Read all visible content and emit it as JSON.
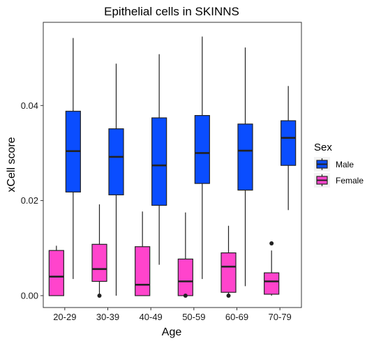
{
  "chart_data": {
    "type": "boxplot",
    "title": "Epithelial cells in SKINNS",
    "xlabel": "Age",
    "ylabel": "xCell score",
    "categories": [
      "20-29",
      "30-39",
      "40-49",
      "50-59",
      "60-69",
      "70-79"
    ],
    "ylim": [
      -0.0025,
      0.0575
    ],
    "yticks": [
      0.0,
      0.02,
      0.04
    ],
    "ytick_labels": [
      "0.00",
      "0.02",
      "0.04"
    ],
    "grid": false,
    "legend": {
      "title": "Sex",
      "placement": "right"
    },
    "series": [
      {
        "name": "Female",
        "color": "#ff44cc",
        "boxes": [
          {
            "min": 0.0,
            "q1": 0.0,
            "median": 0.004,
            "q3": 0.0095,
            "max": 0.0105,
            "outliers": []
          },
          {
            "min": 0.0,
            "q1": 0.003,
            "median": 0.0056,
            "q3": 0.0108,
            "max": 0.0192,
            "outliers": [
              0.0
            ]
          },
          {
            "min": 0.0,
            "q1": 0.0,
            "median": 0.0023,
            "q3": 0.0103,
            "max": 0.0177,
            "outliers": []
          },
          {
            "min": 0.0,
            "q1": 0.0,
            "median": 0.003,
            "q3": 0.0077,
            "max": 0.0175,
            "outliers": [
              0.0
            ]
          },
          {
            "min": 0.0,
            "q1": 0.0007,
            "median": 0.0061,
            "q3": 0.009,
            "max": 0.0147,
            "outliers": [
              0.0
            ]
          },
          {
            "min": 0.0,
            "q1": 0.0003,
            "median": 0.003,
            "q3": 0.0048,
            "max": 0.0095,
            "outliers": [
              0.011
            ]
          }
        ]
      },
      {
        "name": "Male",
        "color": "#0a4dff",
        "boxes": [
          {
            "min": 0.0035,
            "q1": 0.0218,
            "median": 0.0304,
            "q3": 0.0388,
            "max": 0.0542,
            "outliers": []
          },
          {
            "min": 0.0,
            "q1": 0.0212,
            "median": 0.0292,
            "q3": 0.0351,
            "max": 0.0488,
            "outliers": []
          },
          {
            "min": 0.0065,
            "q1": 0.019,
            "median": 0.0274,
            "q3": 0.0374,
            "max": 0.0508,
            "outliers": []
          },
          {
            "min": 0.0035,
            "q1": 0.0236,
            "median": 0.03,
            "q3": 0.0379,
            "max": 0.0545,
            "outliers": []
          },
          {
            "min": 0.002,
            "q1": 0.0222,
            "median": 0.0305,
            "q3": 0.0361,
            "max": 0.0522,
            "outliers": []
          },
          {
            "min": 0.018,
            "q1": 0.0274,
            "median": 0.0332,
            "q3": 0.0368,
            "max": 0.0441,
            "outliers": []
          }
        ]
      }
    ]
  }
}
